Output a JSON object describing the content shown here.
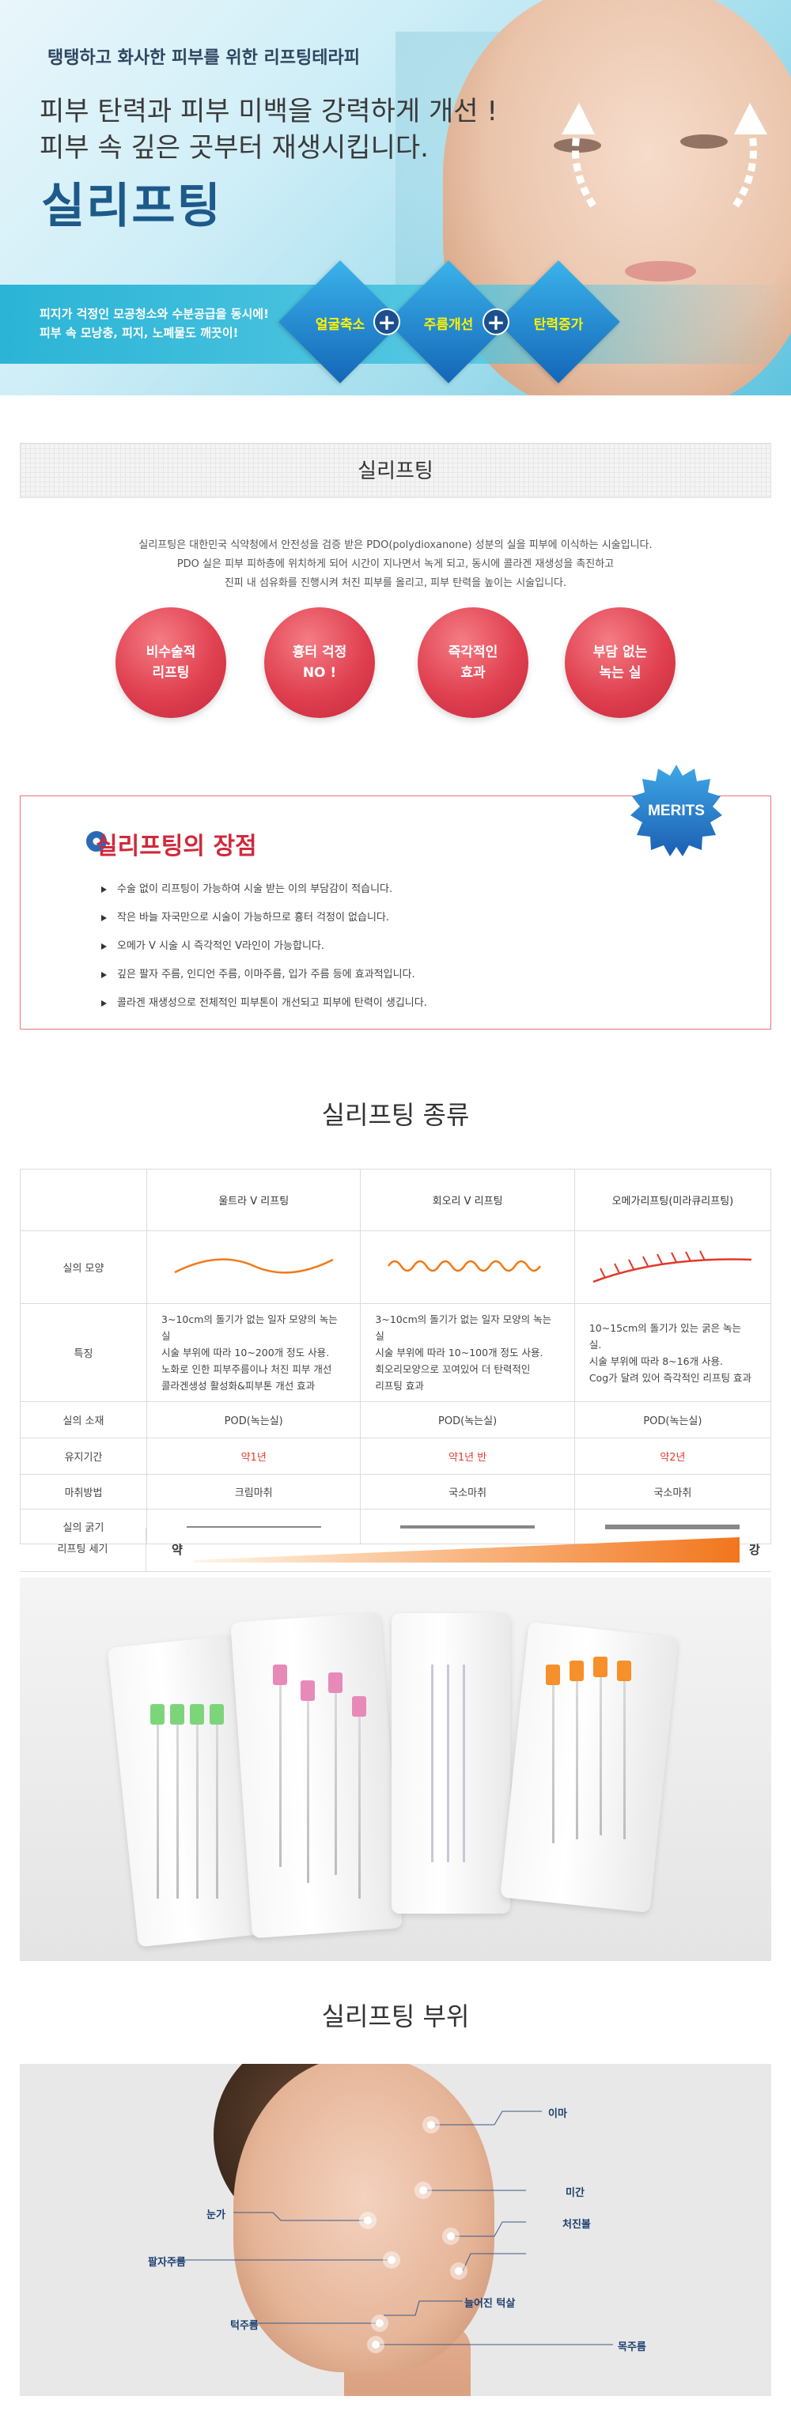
{
  "hero": {
    "kicker": "탱탱하고 화사한 피부를 위한 리프팅테라피",
    "headline_line1": "피부 탄력과 피부 미백을 강력하게 개선 !",
    "headline_line2": "피부 속 깊은 곳부터 재생시킵니다.",
    "title": "실리프팅",
    "band_line1": "피지가 걱정인 모공청소와 수분공급을 동시에!",
    "band_line2": "피부 속 모낭충, 피지, 노폐물도 깨끗이!",
    "diamonds": [
      "얼굴축소",
      "주름개선",
      "탄력증가"
    ],
    "plus_symbol": "+"
  },
  "about": {
    "section_title": "실리프팅",
    "intro_lines": [
      "실리프팅은 대한민국 식약청에서 안전성을 검증 받은 PDO(polydioxanone) 성분의 실을 피부에 이식하는 시술입니다.",
      "PDO 실은 피부 피하층에 위치하게 되어 시간이 지나면서 녹게 되고, 동시에 콜라겐 재생성을 촉진하고",
      "진피 내 섬유화를 진행시켜 처진 피부를 올리고, 피부 탄력을 높이는 시술입니다."
    ],
    "features": [
      {
        "line1": "비수술적",
        "line2": "리프팅"
      },
      {
        "line1": "흉터 걱정",
        "line2": "NO !"
      },
      {
        "line1": "즉각적인",
        "line2": "효과"
      },
      {
        "line1": "부담 없는",
        "line2": "녹는 실"
      }
    ]
  },
  "merits": {
    "badge": "MERITS",
    "title": "실리프팅의 장점",
    "items": [
      "수술 없이 리프팅이 가능하여 시술 받는 이의 부담감이 적습니다.",
      "작은 바늘 자국만으로 시술이 가능하므로 흉터 걱정이 없습니다.",
      "오메가 V 시술 시 즉각적인 V라인이 가능합니다.",
      "깊은 팔자 주름, 인디언 주름, 이마주름, 입가 주름 등에 효과적입니다.",
      "콜라겐 재생성으로 전체적인 피부톤이 개선되고 피부에 탄력이 생깁니다."
    ]
  },
  "types": {
    "section_title": "실리프팅 종류",
    "columns": [
      "울트라 V 리프팅",
      "회오리 V 리프팅",
      "오메가리프팅(미라큐리프팅)"
    ],
    "rows": {
      "shape": "실의 모양",
      "feature": "특징",
      "material": "실의 소재",
      "duration": "유지기간",
      "anesthesia": "마취방법",
      "thickness": "실의 굵기",
      "strength": "리프팅 세기"
    },
    "features": [
      [
        "3~10cm의 돌기가 없는 일자 모양의 녹는실",
        "시술 부위에 따라 10~200개 정도 사용.",
        "노화로 인한 피부주름이나 처진 피부 개선",
        "콜라겐생성 활성화&피부톤 개선 효과"
      ],
      [
        "3~10cm의 돌기가 없는 일자 모양의 녹는실",
        "시술 부위에 따라 10~100개 정도 사용.",
        "회오리모양으로 꼬여있어 더 탄력적인",
        "리프팅 효과"
      ],
      [
        "10~15cm의 돌기가 있는 굵은 녹는 실.",
        "시술 부위에 따라 8~16개 사용.",
        "Cog가 달려 있어 즉각적인 리프팅 효과"
      ]
    ],
    "material": [
      "POD(녹는실)",
      "POD(녹는실)",
      "POD(녹는실)"
    ],
    "duration": [
      "약1년",
      "약1년 반",
      "약2년"
    ],
    "anesthesia": [
      "크림마취",
      "국소마취",
      "국소마취"
    ],
    "thickness_level": [
      1,
      2,
      3
    ],
    "strength_weak": "약",
    "strength_strong": "강"
  },
  "areas": {
    "section_title": "실리프팅 부위",
    "labels": {
      "forehead": "이마",
      "undereye": "눈가",
      "glabella": "미간",
      "sagging_cheek": "처진볼",
      "nasolabial": "팔자주름",
      "jowl": "늘어진 턱살",
      "chin": "턱주름",
      "neck": "목주름"
    }
  },
  "colors": {
    "accent_red": "#e04050",
    "accent_blue": "#1466b8",
    "title_blue": "#1d5a8a",
    "strength_orange": "#f2761d"
  }
}
